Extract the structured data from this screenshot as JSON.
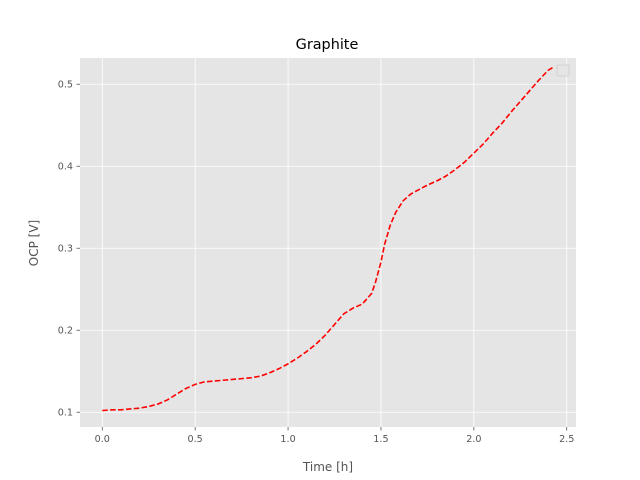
{
  "chart_data": {
    "type": "line",
    "title": "Graphite",
    "xlabel": "Time [h]",
    "ylabel": "OCP [V]",
    "xlim": [
      -0.12,
      2.55
    ],
    "ylim": [
      0.082,
      0.532
    ],
    "xticks": [
      0.0,
      0.5,
      1.0,
      1.5,
      2.0,
      2.5
    ],
    "xtick_labels": [
      "0.0",
      "0.5",
      "1.0",
      "1.5",
      "2.0",
      "2.5"
    ],
    "yticks": [
      0.1,
      0.2,
      0.3,
      0.4,
      0.5
    ],
    "ytick_labels": [
      "0.1",
      "0.2",
      "0.3",
      "0.4",
      "0.5"
    ],
    "grid": true,
    "legend": "top-right",
    "style": {
      "background": "#e5e5e5",
      "grid_color": "#ffffff",
      "line_color": "#ff0000",
      "line_style": "dashed"
    },
    "series": [
      {
        "x": [
          0.0,
          0.05,
          0.1,
          0.15,
          0.2,
          0.25,
          0.3,
          0.35,
          0.4,
          0.45,
          0.5,
          0.55,
          0.6,
          0.65,
          0.7,
          0.75,
          0.8,
          0.85,
          0.9,
          0.95,
          1.0,
          1.05,
          1.1,
          1.15,
          1.2,
          1.25,
          1.3,
          1.35,
          1.4,
          1.45,
          1.47,
          1.5,
          1.52,
          1.55,
          1.58,
          1.62,
          1.66,
          1.7,
          1.75,
          1.8,
          1.85,
          1.9,
          1.95,
          2.0,
          2.05,
          2.1,
          2.15,
          2.2,
          2.25,
          2.3,
          2.35,
          2.4,
          2.43
        ],
        "y": [
          0.102,
          0.103,
          0.103,
          0.104,
          0.105,
          0.107,
          0.11,
          0.115,
          0.122,
          0.129,
          0.134,
          0.137,
          0.138,
          0.139,
          0.14,
          0.141,
          0.142,
          0.144,
          0.148,
          0.153,
          0.159,
          0.166,
          0.174,
          0.183,
          0.194,
          0.207,
          0.22,
          0.227,
          0.232,
          0.245,
          0.258,
          0.283,
          0.305,
          0.328,
          0.344,
          0.358,
          0.366,
          0.371,
          0.377,
          0.382,
          0.388,
          0.396,
          0.405,
          0.416,
          0.427,
          0.44,
          0.452,
          0.466,
          0.479,
          0.492,
          0.505,
          0.517,
          0.521
        ]
      }
    ]
  }
}
